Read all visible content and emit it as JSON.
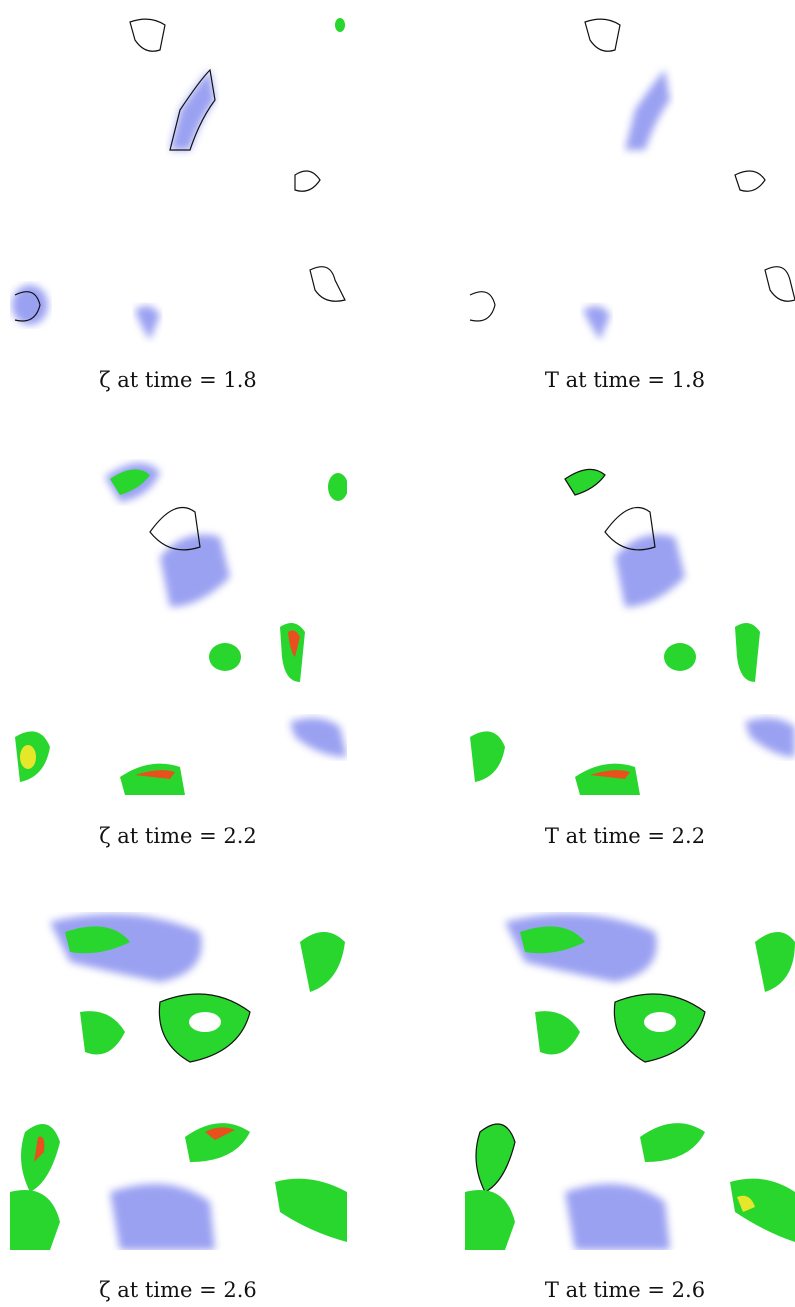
{
  "panels": [
    {
      "caption": "ζ at time = 1.8"
    },
    {
      "caption": "T at time = 1.8"
    },
    {
      "caption": "ζ at time = 2.2"
    },
    {
      "caption": "T at time = 2.2"
    },
    {
      "caption": "ζ at time = 2.6"
    },
    {
      "caption": "T at time = 2.6"
    }
  ]
}
